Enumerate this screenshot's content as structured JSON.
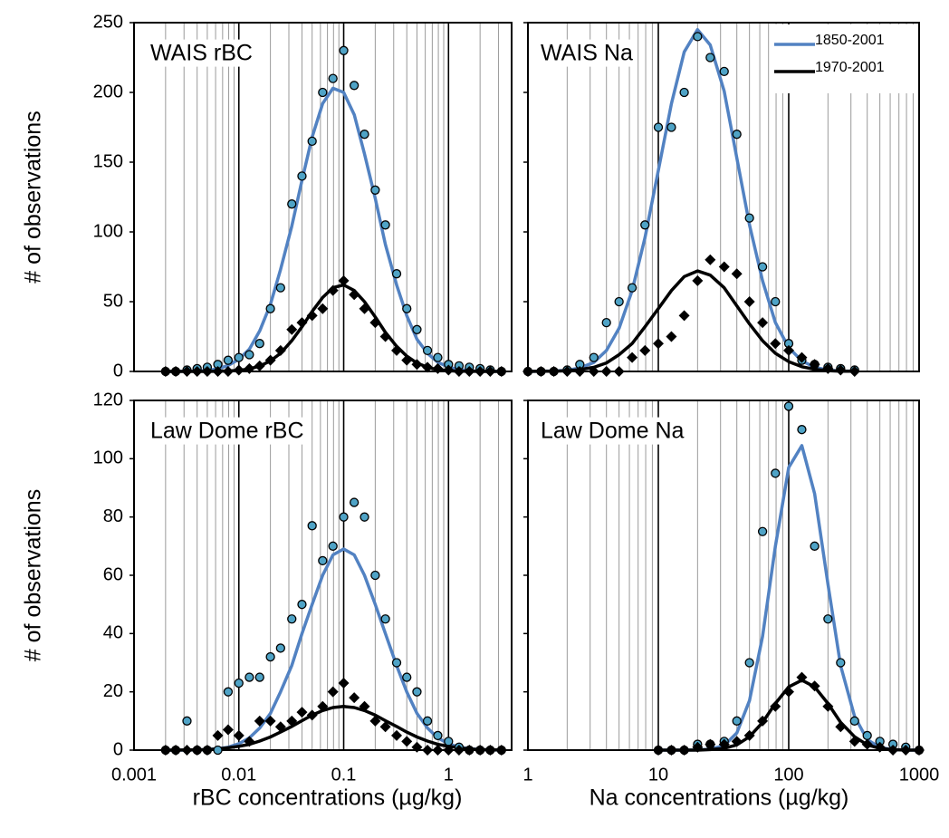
{
  "chart_data": [
    {
      "type": "scatter",
      "title": "WAIS rBC",
      "ylabel": "# of observations",
      "xscale": "log",
      "grid": true,
      "xlim": [
        0.001,
        4
      ],
      "xticks": [
        0.001,
        0.01,
        0.1,
        1
      ],
      "xticklabels": false,
      "xminorticks": [
        0.002,
        0.003,
        0.004,
        0.005,
        0.006,
        0.007,
        0.008,
        0.009,
        0.02,
        0.03,
        0.04,
        0.05,
        0.06,
        0.07,
        0.08,
        0.09,
        0.2,
        0.3,
        0.4,
        0.5,
        0.6,
        0.7,
        0.8,
        0.9,
        2,
        3
      ],
      "ylim": [
        0,
        250
      ],
      "yticks": [
        0,
        50,
        100,
        150,
        200,
        250
      ],
      "yticklabels": true,
      "x": [
        0.002,
        0.0025,
        0.0032,
        0.004,
        0.005,
        0.0063,
        0.0079,
        0.01,
        0.0126,
        0.0158,
        0.02,
        0.025,
        0.032,
        0.04,
        0.05,
        0.063,
        0.079,
        0.1,
        0.126,
        0.158,
        0.2,
        0.25,
        0.32,
        0.4,
        0.5,
        0.63,
        0.79,
        1,
        1.26,
        1.58,
        2,
        2.5,
        3.2
      ],
      "series": [
        {
          "marker": "circle",
          "color": "#4fa3c6",
          "values": [
            0,
            0,
            1,
            2,
            3,
            5,
            8,
            10,
            12,
            20,
            45,
            60,
            120,
            140,
            165,
            200,
            210,
            230,
            205,
            170,
            130,
            105,
            70,
            45,
            30,
            15,
            10,
            5,
            4,
            3,
            2,
            1,
            0
          ]
        },
        {
          "marker": "line",
          "color": "#5282c2",
          "values": [
            0,
            0,
            0.1,
            0.3,
            0.8,
            1.9,
            4.3,
            8.7,
            16,
            29,
            48,
            73,
            104,
            137,
            168,
            192,
            203,
            200,
            184,
            156,
            124,
            91,
            62,
            40,
            23,
            13,
            6.6,
            3.1,
            1.4,
            0.6,
            0.2,
            0.1,
            0
          ]
        },
        {
          "marker": "diamond",
          "color": "#000000",
          "values": [
            0,
            0,
            0,
            0,
            0,
            0,
            0,
            1,
            2,
            4,
            8,
            15,
            30,
            35,
            40,
            45,
            58,
            65,
            55,
            45,
            35,
            25,
            15,
            8,
            5,
            3,
            2,
            1,
            0,
            0,
            0,
            0,
            0
          ]
        },
        {
          "marker": "line",
          "color": "#000000",
          "values": [
            0,
            0,
            0,
            0,
            0,
            0.1,
            0.3,
            0.8,
            1.8,
            3.8,
            7.5,
            13,
            22,
            32,
            43,
            53,
            60,
            62,
            58,
            50,
            39,
            28,
            18,
            11,
            6,
            3,
            1.2,
            0.5,
            0.2,
            0.1,
            0,
            0,
            0
          ]
        }
      ]
    },
    {
      "type": "scatter",
      "title": "WAIS Na",
      "xscale": "log",
      "grid": true,
      "legend": "upper right",
      "xlim": [
        1,
        1000
      ],
      "xticks": [
        1,
        10,
        100,
        1000
      ],
      "xticklabels": false,
      "xminorticks": [
        2,
        3,
        4,
        5,
        6,
        7,
        8,
        9,
        20,
        30,
        40,
        50,
        60,
        70,
        80,
        90,
        200,
        300,
        400,
        500,
        600,
        700,
        800,
        900
      ],
      "ylim": [
        0,
        250
      ],
      "yticks": [
        0,
        50,
        100,
        150,
        200,
        250
      ],
      "yticklabels": false,
      "x": [
        1,
        1.26,
        1.58,
        2,
        2.5,
        3.2,
        4,
        5,
        6.3,
        7.9,
        10,
        12.6,
        15.8,
        20,
        25,
        32,
        40,
        50,
        63,
        79,
        100,
        126,
        158,
        200,
        250,
        320
      ],
      "series": [
        {
          "marker": "circle",
          "color": "#4fa3c6",
          "values": [
            0,
            0,
            0,
            1,
            5,
            10,
            35,
            50,
            60,
            105,
            175,
            175,
            200,
            240,
            225,
            215,
            170,
            110,
            75,
            50,
            20,
            8,
            5,
            3,
            2,
            1
          ]
        },
        {
          "name": "1850-2001",
          "marker": "line",
          "color": "#5282c2",
          "values": [
            0,
            0.1,
            0.3,
            0.8,
            2.5,
            6.4,
            15,
            31,
            58,
            96,
            144,
            192,
            229,
            245,
            234,
            201,
            153,
            105,
            65,
            35,
            17,
            7.6,
            3,
            1,
            0.3,
            0.1
          ]
        },
        {
          "marker": "diamond",
          "color": "#000000",
          "values": [
            0,
            0,
            0,
            0,
            0,
            0,
            0,
            0,
            10,
            15,
            20,
            25,
            40,
            65,
            80,
            75,
            70,
            50,
            35,
            20,
            15,
            10,
            5,
            2,
            1,
            0
          ]
        },
        {
          "name": "1970-2001",
          "marker": "line",
          "color": "#000000",
          "values": [
            0,
            0.1,
            0.2,
            0.5,
            1.3,
            2.9,
            6.1,
            12,
            20,
            32,
            45,
            58,
            68,
            72,
            69,
            60,
            47,
            34,
            22,
            13,
            7,
            3.4,
            1.5,
            0.6,
            0.2,
            0.1
          ]
        }
      ]
    },
    {
      "type": "scatter",
      "title": "Law Dome rBC",
      "xlabel": "rBC concentrations (µg/kg)",
      "ylabel": "# of observations",
      "xscale": "log",
      "grid": true,
      "xlim": [
        0.001,
        4
      ],
      "xticks": [
        0.001,
        0.01,
        0.1,
        1
      ],
      "xticklabels": true,
      "xminorticks": [
        0.002,
        0.003,
        0.004,
        0.005,
        0.006,
        0.007,
        0.008,
        0.009,
        0.02,
        0.03,
        0.04,
        0.05,
        0.06,
        0.07,
        0.08,
        0.09,
        0.2,
        0.3,
        0.4,
        0.5,
        0.6,
        0.7,
        0.8,
        0.9,
        2,
        3
      ],
      "ylim": [
        0,
        120
      ],
      "yticks": [
        0,
        20,
        40,
        60,
        80,
        100,
        120
      ],
      "yticklabels": true,
      "x": [
        0.002,
        0.0025,
        0.0032,
        0.004,
        0.005,
        0.0063,
        0.0079,
        0.01,
        0.0126,
        0.0158,
        0.02,
        0.025,
        0.032,
        0.04,
        0.05,
        0.063,
        0.079,
        0.1,
        0.126,
        0.158,
        0.2,
        0.25,
        0.32,
        0.4,
        0.5,
        0.63,
        0.79,
        1,
        1.26,
        1.58,
        2,
        2.5,
        3.2
      ],
      "series": [
        {
          "marker": "circle",
          "color": "#4fa3c6",
          "values": [
            0,
            0,
            10,
            0,
            0,
            0,
            20,
            23,
            25,
            25,
            32,
            35,
            45,
            50,
            77,
            65,
            70,
            80,
            85,
            80,
            60,
            45,
            30,
            25,
            20,
            10,
            5,
            3,
            1,
            0,
            0,
            0,
            0
          ]
        },
        {
          "marker": "line",
          "color": "#5282c2",
          "values": [
            0,
            0,
            0,
            0.1,
            0.2,
            0.5,
            1,
            2.2,
            4.2,
            7.6,
            12.6,
            20,
            29,
            40,
            50,
            60,
            67,
            69,
            67,
            60,
            50,
            40,
            29,
            20,
            12.6,
            7.6,
            4.2,
            2.2,
            1,
            0.5,
            0.2,
            0.1,
            0
          ]
        },
        {
          "marker": "diamond",
          "color": "#000000",
          "values": [
            0,
            0,
            0,
            0,
            0,
            5,
            7,
            5,
            3,
            10,
            10,
            8,
            10,
            13,
            12,
            15,
            20,
            23,
            18,
            15,
            10,
            8,
            5,
            3,
            1,
            0,
            0,
            0,
            0,
            0,
            0,
            0,
            0
          ]
        },
        {
          "marker": "line",
          "color": "#000000",
          "values": [
            0,
            0,
            0.1,
            0.1,
            0.2,
            0.4,
            0.8,
            1.3,
            2,
            3.1,
            4.5,
            6.2,
            8.1,
            10.1,
            12,
            13.6,
            14.6,
            15,
            14.6,
            13.6,
            12,
            10.1,
            8.1,
            6.2,
            4.5,
            3.1,
            2,
            1.3,
            0.8,
            0.4,
            0.2,
            0.1,
            0.1
          ]
        }
      ]
    },
    {
      "type": "scatter",
      "title": "Law Dome Na",
      "xlabel": "Na concentrations (µg/kg)",
      "xscale": "log",
      "grid": true,
      "xlim": [
        1,
        1000
      ],
      "xticks": [
        1,
        10,
        100,
        1000
      ],
      "xticklabels": true,
      "xminorticks": [
        2,
        3,
        4,
        5,
        6,
        7,
        8,
        9,
        20,
        30,
        40,
        50,
        60,
        70,
        80,
        90,
        200,
        300,
        400,
        500,
        600,
        700,
        800,
        900
      ],
      "ylim": [
        0,
        120
      ],
      "yticks": [
        0,
        20,
        40,
        60,
        80,
        100,
        120
      ],
      "yticklabels": false,
      "x": [
        10,
        12.6,
        15.8,
        20,
        25,
        32,
        40,
        50,
        63,
        79,
        100,
        126,
        158,
        200,
        250,
        320,
        400,
        500,
        630,
        790,
        1000
      ],
      "series": [
        {
          "marker": "circle",
          "color": "#4fa3c6",
          "values": [
            0,
            0,
            0,
            2,
            2,
            3,
            10,
            30,
            75,
            95,
            118,
            110,
            70,
            45,
            30,
            10,
            5,
            3,
            2,
            1,
            0
          ]
        },
        {
          "marker": "line",
          "color": "#5282c2",
          "values": [
            0,
            0,
            0,
            0.1,
            0.3,
            1.6,
            5.9,
            17,
            39,
            70,
            97,
            104.5,
            88,
            57,
            29,
            11.6,
            3.6,
            0.9,
            0.2,
            0,
            0
          ]
        },
        {
          "marker": "diamond",
          "color": "#000000",
          "values": [
            0,
            0,
            0,
            1,
            2,
            2,
            3,
            5,
            10,
            15,
            20,
            25,
            22,
            15,
            8,
            3,
            2,
            1,
            0,
            0,
            0
          ]
        },
        {
          "marker": "line",
          "color": "#000000",
          "values": [
            0,
            0,
            0,
            0,
            0.2,
            0.6,
            1.8,
            4.6,
            9.5,
            16,
            21.7,
            24,
            21.7,
            16,
            9.5,
            4.6,
            1.8,
            0.6,
            0.2,
            0,
            0
          ]
        }
      ]
    }
  ]
}
